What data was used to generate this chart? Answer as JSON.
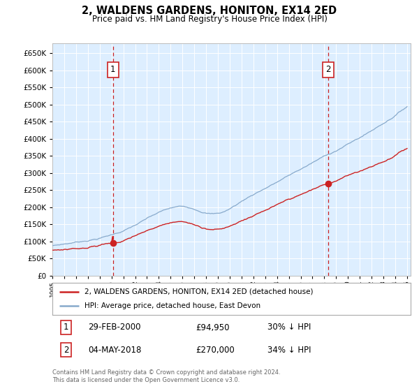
{
  "title": "2, WALDENS GARDENS, HONITON, EX14 2ED",
  "subtitle": "Price paid vs. HM Land Registry's House Price Index (HPI)",
  "legend_line1": "2, WALDENS GARDENS, HONITON, EX14 2ED (detached house)",
  "legend_line2": "HPI: Average price, detached house, East Devon",
  "annotation1_date": "29-FEB-2000",
  "annotation1_price": "£94,950",
  "annotation1_hpi": "30% ↓ HPI",
  "annotation2_date": "04-MAY-2018",
  "annotation2_price": "£270,000",
  "annotation2_hpi": "34% ↓ HPI",
  "footnote_line1": "Contains HM Land Registry data © Crown copyright and database right 2024.",
  "footnote_line2": "This data is licensed under the Open Government Licence v3.0.",
  "red_color": "#cc2222",
  "blue_color": "#88aacc",
  "bg_color": "#ddeeff",
  "grid_color": "#ffffff",
  "ylim_min": 0,
  "ylim_max": 680000,
  "sale1_year": 2000.125,
  "sale1_price": 94950,
  "sale2_year": 2018.333,
  "sale2_price": 270000
}
